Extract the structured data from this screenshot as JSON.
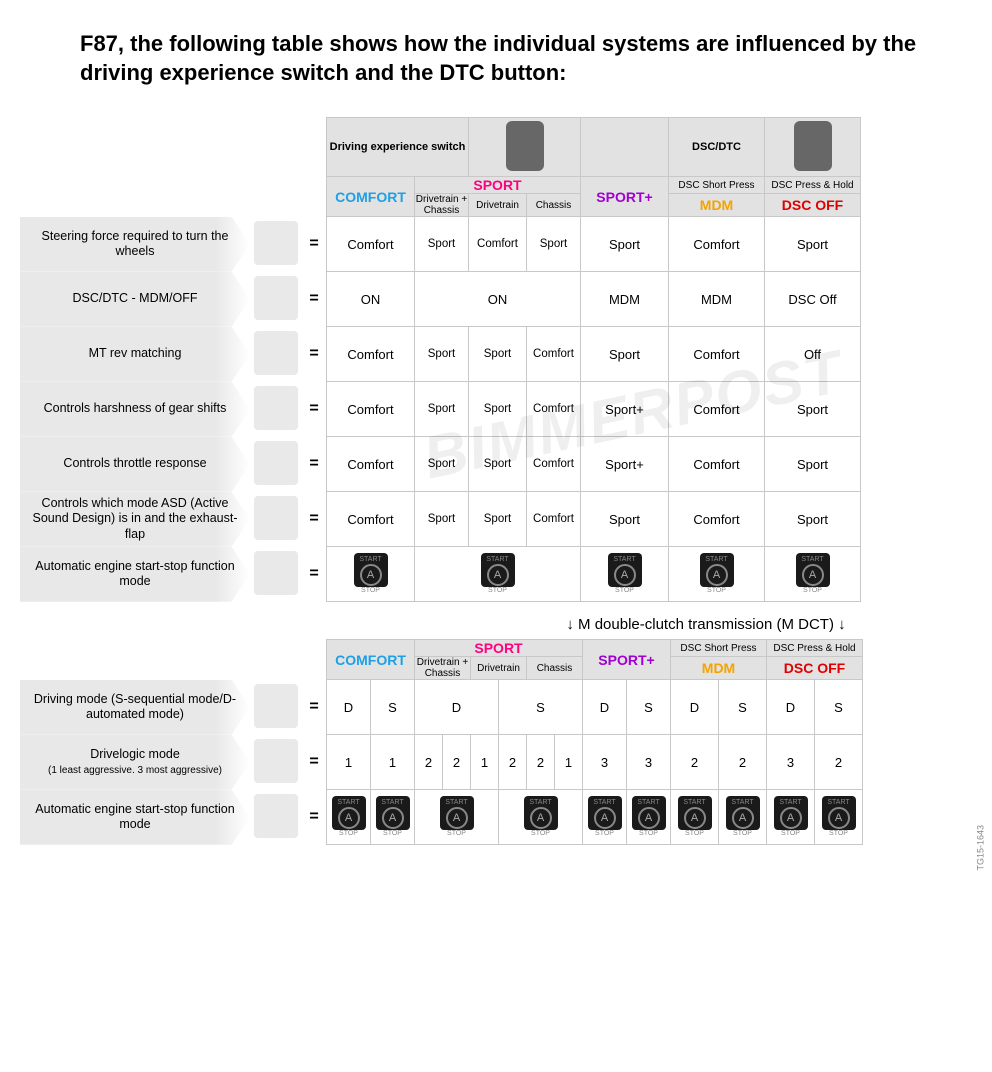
{
  "title": "F87, the following table shows how the individual systems are influenced by the driving experience switch and the DTC button:",
  "groupHeaders": {
    "drivingSwitch": "Driving experience switch",
    "dscDtc": "DSC/DTC"
  },
  "colHeaders": {
    "comfort": "COMFORT",
    "sport": "SPORT",
    "sportSubs": [
      "Drivetrain + Chassis",
      "Drivetrain",
      "Chassis"
    ],
    "sportPlus": "SPORT+",
    "dscShort": "DSC Short Press",
    "mdm": "MDM",
    "dscHold": "DSC Press & Hold",
    "dscOff": "DSC OFF"
  },
  "colors": {
    "comfort": "#1ea0e6",
    "sport": "#ff007f",
    "sportPlus": "#a000d0",
    "mdm": "#f5a300",
    "dscOff": "#e00000",
    "headerBg": "#e2e2e2",
    "border": "#c8c8c8"
  },
  "rows1": [
    {
      "label": "Steering force required to turn the wheels",
      "cells": [
        "Comfort",
        "Sport",
        "Comfort",
        "Sport",
        "Sport",
        "Comfort",
        "Sport"
      ]
    },
    {
      "label": "DSC/DTC - MDM/OFF",
      "cells": [
        "ON",
        "ON_SPAN3",
        "",
        "",
        "MDM",
        "MDM",
        "DSC Off"
      ]
    },
    {
      "label": "MT rev matching",
      "cells": [
        "Comfort",
        "Sport",
        "Sport",
        "Comfort",
        "Sport",
        "Comfort",
        "Off"
      ]
    },
    {
      "label": "Controls harshness of gear shifts",
      "cells": [
        "Comfort",
        "Sport",
        "Sport",
        "Comfort",
        "Sport+",
        "Comfort",
        "Sport"
      ]
    },
    {
      "label": "Controls throttle response",
      "cells": [
        "Comfort",
        "Sport",
        "Sport",
        "Comfort",
        "Sport+",
        "Comfort",
        "Sport"
      ]
    },
    {
      "label": "Controls which mode ASD (Active Sound Design) is in and the exhaust-flap",
      "cells": [
        "Comfort",
        "Sport",
        "Sport",
        "Comfort",
        "Sport",
        "Comfort",
        "Sport"
      ]
    },
    {
      "label": "Automatic engine start-stop function mode",
      "cells": [
        "ICON",
        "ICON_SPAN3",
        "",
        "",
        "ICON",
        "ICON",
        "ICON"
      ]
    }
  ],
  "sectionLabel": "↓ M double-clutch transmission (M DCT) ↓",
  "rows2": [
    {
      "label": "Driving mode (S-sequential mode/D-automated mode)",
      "sub": "",
      "cells": [
        "D",
        "S",
        "D_SPAN3",
        "",
        "",
        "S_SPAN3",
        "",
        "",
        "D",
        "S",
        "D",
        "S",
        "D",
        "S"
      ]
    },
    {
      "label": "Drivelogic mode",
      "sub": "(1 least aggressive. 3 most aggressive)",
      "cells": [
        "1",
        "1",
        "2",
        "2",
        "1",
        "2",
        "2",
        "1",
        "3",
        "3",
        "2",
        "2",
        "3",
        "2"
      ]
    },
    {
      "label": "Automatic engine start-stop function mode",
      "sub": "",
      "cells": [
        "ICON",
        "ICON",
        "ICON_SPAN3",
        "",
        "",
        "ICON_SPAN3",
        "",
        "",
        "ICON",
        "ICON",
        "ICON",
        "ICON",
        "ICON",
        "ICON"
      ]
    }
  ],
  "watermark": "BIMMERPOST",
  "sideCode": "TG15-1643"
}
